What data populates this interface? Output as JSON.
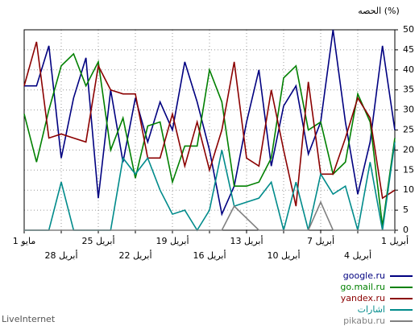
{
  "chart_data": {
    "type": "line",
    "title": "الحصه (%)",
    "source": "LiveInternet",
    "categories": [
      "1 مايو",
      null,
      null,
      "28 أبريل",
      null,
      null,
      "25 أبريل",
      null,
      null,
      "22 أبريل",
      null,
      null,
      "19 أبريل",
      null,
      null,
      "16 أبريل",
      null,
      null,
      "13 أبريل",
      null,
      null,
      "10 أبريل",
      null,
      null,
      "7 أبريل",
      null,
      null,
      "4 أبريل",
      null,
      null,
      "1 أبريل"
    ],
    "ylim": [
      0,
      50
    ],
    "yticks": [
      0,
      5,
      10,
      15,
      20,
      25,
      30,
      35,
      40,
      45,
      50
    ],
    "grid": true,
    "series": [
      {
        "name": "google.ru",
        "color": "#000080",
        "values": [
          36,
          36,
          46,
          18,
          33,
          43,
          8,
          35,
          17,
          33,
          22,
          32,
          25,
          42,
          32,
          20,
          4,
          11,
          27,
          40,
          16,
          31,
          36,
          19,
          27,
          50,
          27,
          9,
          22,
          46,
          25
        ]
      },
      {
        "name": "go.mail.ru",
        "color": "#008000",
        "values": [
          29,
          17,
          30,
          41,
          44,
          36,
          42,
          20,
          28,
          13,
          26,
          27,
          12,
          21,
          21,
          40,
          32,
          11,
          11,
          12,
          18,
          38,
          41,
          25,
          27,
          14,
          17,
          34,
          27,
          1,
          23
        ]
      },
      {
        "name": "yandex.ru",
        "color": "#8b0000",
        "values": [
          36,
          47,
          23,
          24,
          23,
          22,
          41,
          35,
          34,
          34,
          18,
          18,
          29,
          16,
          27,
          15,
          25,
          42,
          18,
          16,
          35,
          20,
          6,
          37,
          14,
          14,
          23,
          33,
          28,
          8,
          10
        ]
      },
      {
        "name": "اشارات",
        "color": "#008b8b",
        "values": [
          0,
          0,
          0,
          12,
          0,
          0,
          0,
          0,
          18,
          14,
          18,
          10,
          4,
          5,
          0,
          5,
          20,
          6,
          7,
          8,
          12,
          0,
          12,
          0,
          14,
          9,
          11,
          0,
          17,
          0,
          22
        ]
      },
      {
        "name": "pikabu.ru",
        "color": "#808080",
        "values": [
          0,
          0,
          0,
          0,
          0,
          0,
          0,
          0,
          0,
          0,
          0,
          0,
          0,
          0,
          0,
          0,
          0,
          6,
          3,
          0,
          0,
          0,
          0,
          0,
          7,
          0,
          0,
          0,
          0,
          0,
          0
        ]
      }
    ]
  }
}
